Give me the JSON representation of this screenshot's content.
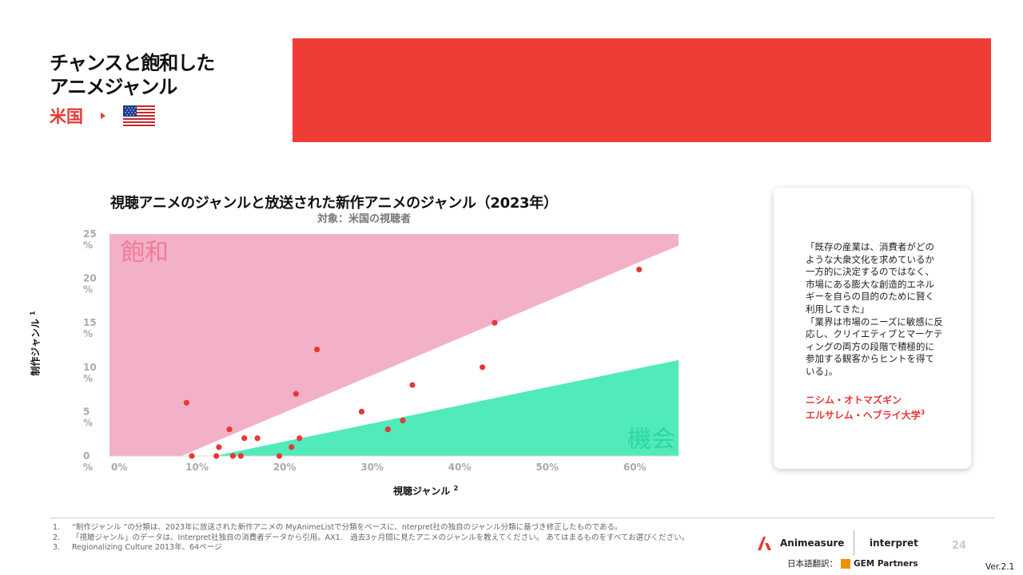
{
  "page": {
    "title_line1": "チャンスと飽和した",
    "title_line2": "アニメジャンル",
    "country": "米国",
    "page_number": "24",
    "version": "Ver.2.1"
  },
  "colors": {
    "brand_red": "#ef3d36",
    "saturation_zone": "#f2b1c6",
    "opportunity_zone": "#50eabb",
    "point": "#e53935"
  },
  "chart_data": {
    "type": "scatter",
    "title": "視聴アニメのジャンルと放送された新作アニメのジャンル（2023年）",
    "subtitle": "対象：米国の視聴者",
    "xlabel": "視聴ジャンル",
    "xlabel_sup": "2",
    "ylabel": "制作ジャンル",
    "ylabel_sup": "1",
    "xlim": [
      0,
      65
    ],
    "ylim": [
      0,
      25
    ],
    "x_ticks": [
      {
        "value": 0,
        "label": "0%"
      },
      {
        "value": 10,
        "label": "10%"
      },
      {
        "value": 20,
        "label": "20%"
      },
      {
        "value": 30,
        "label": "30%"
      },
      {
        "value": 40,
        "label": "40%"
      },
      {
        "value": 50,
        "label": "50%"
      },
      {
        "value": 60,
        "label": "60%"
      }
    ],
    "y_ticks": [
      {
        "value": 0,
        "label": "0\n%"
      },
      {
        "value": 5,
        "label": "5\n%"
      },
      {
        "value": 10,
        "label": "10\n%"
      },
      {
        "value": 15,
        "label": "15\n%"
      },
      {
        "value": 20,
        "label": "20\n%"
      },
      {
        "value": 25,
        "label": "25\n%"
      }
    ],
    "zones": [
      {
        "name": "saturation",
        "label": "飽和",
        "line_start": [
          8.2,
          0
        ],
        "line_end": [
          65,
          23.7
        ]
      },
      {
        "name": "opportunity",
        "label": "機会",
        "line_start": [
          12,
          0
        ],
        "line_end": [
          65,
          10.8
        ]
      }
    ],
    "points": [
      {
        "x": 8.8,
        "y": 6.0
      },
      {
        "x": 9.4,
        "y": 0.0
      },
      {
        "x": 12.2,
        "y": 0.0
      },
      {
        "x": 12.5,
        "y": 1.0
      },
      {
        "x": 13.7,
        "y": 3.0
      },
      {
        "x": 14.1,
        "y": 0.0
      },
      {
        "x": 15.0,
        "y": 0.0
      },
      {
        "x": 15.4,
        "y": 2.0
      },
      {
        "x": 16.9,
        "y": 2.0
      },
      {
        "x": 19.4,
        "y": 0.0
      },
      {
        "x": 20.8,
        "y": 1.0
      },
      {
        "x": 21.3,
        "y": 7.0
      },
      {
        "x": 21.7,
        "y": 2.0
      },
      {
        "x": 23.7,
        "y": 12.0
      },
      {
        "x": 28.8,
        "y": 5.0
      },
      {
        "x": 31.8,
        "y": 3.0
      },
      {
        "x": 33.5,
        "y": 4.0
      },
      {
        "x": 34.6,
        "y": 8.0
      },
      {
        "x": 42.6,
        "y": 10.0
      },
      {
        "x": 44.0,
        "y": 15.0
      },
      {
        "x": 60.5,
        "y": 21.0
      }
    ]
  },
  "quote": {
    "text": "「既存の産業は、消費者がどのような大衆文化を求めているか一方的に決定するのではなく、市場にある膨大な創造的エネルギーを自らの目的のために賢く利用してきた」\n「業界は市場のニーズに敏感に反応し、クリイエティブとマーケティングの両方の段階で積極的に参加する観客からヒントを得ている」。",
    "author_line1": "ニシム・オトマズギン",
    "author_line2": "エルサレム・ヘブライ大学",
    "author_sup": "3"
  },
  "footnotes": [
    {
      "num": "1.",
      "text": "“制作ジャンル ”の分類は、2023年に放送された新作アニメの MyAnimeListで分類をベースに、nterpret社の独自のジャンル分類に基づき修正したものである。"
    },
    {
      "num": "2.",
      "text": "「視聴ジャンル」のデータは、Interpret社独自の消費者データから引用。AX1.　過去3ヶ月間に見たアニメのジャンルを教えてください。 あてはまるものをすべてお選びください。"
    },
    {
      "num": "3.",
      "text": "Regionalizing Culture 2013年、64ページ"
    }
  ],
  "logos": {
    "animeasure": "Animeasure",
    "interpret": "interpret",
    "translation_label": "日本語翻訳：",
    "gem": "GEM Partners"
  }
}
